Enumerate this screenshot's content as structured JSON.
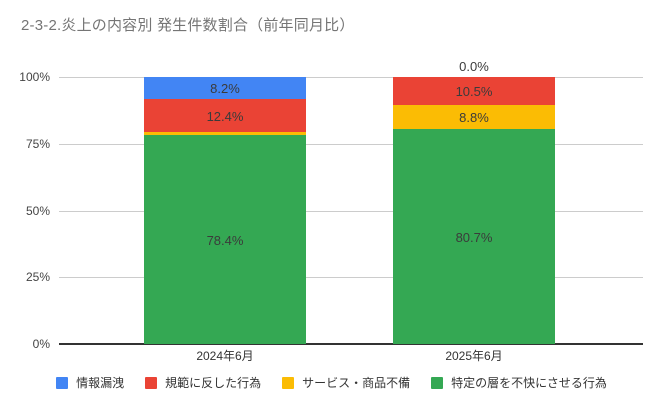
{
  "title": "2-3-2.炎上の内容別 発生件数割合（前年同月比）",
  "colors": {
    "background": "#ffffff",
    "title_text": "#757575",
    "gridline": "#cccccc",
    "baseline": "#333333",
    "axis_text": "#444444",
    "data_label_text": "#3b3b3b",
    "series_blue": "#4285F4",
    "series_red": "#EA4335",
    "series_yellow": "#FBBC04",
    "series_green": "#34A853"
  },
  "chart_data": {
    "type": "bar",
    "variant": "100-percent-stacked-column",
    "title": "2-3-2.炎上の内容別 発生件数割合（前年同月比）",
    "categories": [
      "2024年6月",
      "2025年6月"
    ],
    "series": [
      {
        "name": "情報漏洩",
        "color": "#4285F4",
        "values": [
          8.2,
          0.0
        ],
        "labels": [
          "8.2%",
          "0.0%"
        ]
      },
      {
        "name": "規範に反した行為",
        "color": "#EA4335",
        "values": [
          12.4,
          10.5
        ],
        "labels": [
          "12.4%",
          "10.5%"
        ]
      },
      {
        "name": "サービス・商品不備",
        "color": "#FBBC04",
        "values": [
          1.0,
          8.8
        ],
        "labels": [
          "1.0%",
          "8.8%"
        ]
      },
      {
        "name": "特定の層を不快にさせる行為",
        "color": "#34A853",
        "values": [
          78.4,
          80.7
        ],
        "labels": [
          "78.4%",
          "80.7%"
        ]
      }
    ],
    "stack_order_top_to_bottom": [
      "情報漏洩",
      "規範に反した行為",
      "サービス・商品不備",
      "特定の層を不快にさせる行為"
    ],
    "y_ticks": [
      "100%",
      "75%",
      "50%",
      "25%",
      "0%"
    ],
    "ylim": [
      0,
      100
    ],
    "xlabel": "",
    "ylabel": "",
    "grid": true,
    "legend_position": "bottom"
  }
}
